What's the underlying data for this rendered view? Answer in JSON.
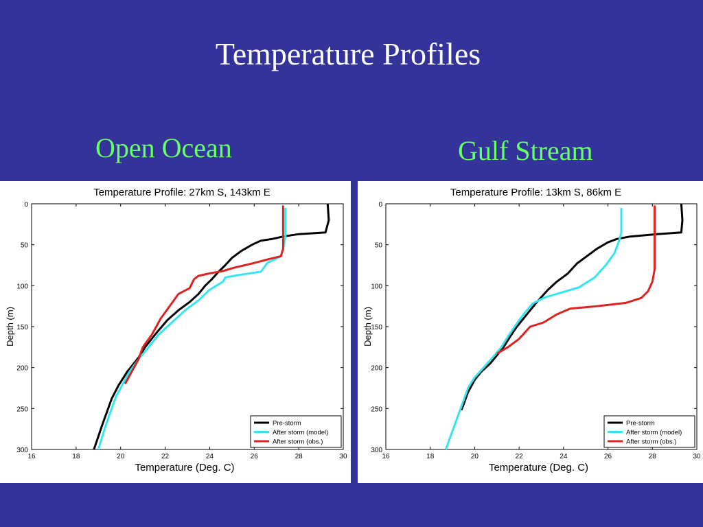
{
  "slide": {
    "title": "Temperature Profiles",
    "left_subtitle": "Open Ocean",
    "right_subtitle": "Gulf Stream",
    "subtitle_color": "#66ff66",
    "background_color": "#333399"
  },
  "chart_data": [
    {
      "type": "line",
      "title": "Temperature  Profile: 27km S, 143km E",
      "xlabel": "Temperature (Deg. C)",
      "ylabel": "Depth (m)",
      "xlim": [
        16,
        30
      ],
      "ylim": [
        0,
        300
      ],
      "y_inverted": true,
      "xticks": [
        16,
        18,
        20,
        22,
        24,
        26,
        28,
        30
      ],
      "yticks": [
        0,
        50,
        100,
        150,
        200,
        250,
        300
      ],
      "grid": false,
      "legend_position": "bottom-right",
      "series": [
        {
          "name": "Pre-storm",
          "color": "#000000",
          "points": [
            [
              29.3,
              0
            ],
            [
              29.35,
              20
            ],
            [
              29.2,
              35
            ],
            [
              28.0,
              37
            ],
            [
              27.3,
              40
            ],
            [
              26.8,
              43
            ],
            [
              26.3,
              45
            ],
            [
              25.9,
              50
            ],
            [
              25.4,
              58
            ],
            [
              25.0,
              66
            ],
            [
              24.7,
              75
            ],
            [
              24.4,
              83
            ],
            [
              24.1,
              92
            ],
            [
              23.8,
              100
            ],
            [
              23.5,
              110
            ],
            [
              23.1,
              120
            ],
            [
              22.6,
              130
            ],
            [
              22.1,
              142
            ],
            [
              21.6,
              158
            ],
            [
              21.1,
              175
            ],
            [
              20.8,
              188
            ],
            [
              20.3,
              205
            ],
            [
              19.9,
              222
            ],
            [
              19.6,
              238
            ],
            [
              19.4,
              253
            ],
            [
              19.2,
              268
            ],
            [
              19.0,
              284
            ],
            [
              18.8,
              300
            ]
          ]
        },
        {
          "name": "After storm (model)",
          "color": "#33e6f0",
          "points": [
            [
              27.4,
              5
            ],
            [
              27.4,
              20
            ],
            [
              27.4,
              40
            ],
            [
              27.3,
              55
            ],
            [
              27.2,
              64
            ],
            [
              26.6,
              72
            ],
            [
              26.3,
              83
            ],
            [
              25.3,
              87
            ],
            [
              24.7,
              90
            ],
            [
              24.6,
              95
            ],
            [
              24.0,
              105
            ],
            [
              23.5,
              118
            ],
            [
              22.9,
              130
            ],
            [
              22.3,
              145
            ],
            [
              21.7,
              160
            ],
            [
              21.2,
              177
            ],
            [
              20.8,
              190
            ],
            [
              20.4,
              205
            ],
            [
              20.1,
              220
            ],
            [
              19.8,
              235
            ],
            [
              19.6,
              250
            ],
            [
              19.4,
              265
            ],
            [
              19.2,
              282
            ],
            [
              19.0,
              300
            ]
          ]
        },
        {
          "name": "After storm (obs.)",
          "color": "#dd2222",
          "points": [
            [
              27.3,
              2
            ],
            [
              27.3,
              20
            ],
            [
              27.3,
              40
            ],
            [
              27.3,
              55
            ],
            [
              27.2,
              64
            ],
            [
              26.6,
              68
            ],
            [
              25.9,
              73
            ],
            [
              25.1,
              78
            ],
            [
              24.6,
              82
            ],
            [
              24.0,
              85
            ],
            [
              23.5,
              88
            ],
            [
              23.3,
              92
            ],
            [
              23.1,
              103
            ],
            [
              22.6,
              110
            ],
            [
              22.2,
              125
            ],
            [
              21.8,
              140
            ],
            [
              21.4,
              160
            ],
            [
              21.0,
              175
            ],
            [
              20.8,
              190
            ],
            [
              20.5,
              205
            ],
            [
              20.2,
              220
            ]
          ]
        }
      ]
    },
    {
      "type": "line",
      "title": "Temperature  Profile: 13km S, 86km E",
      "xlabel": "Temperature (Deg. C)",
      "ylabel": "Depth (m)",
      "xlim": [
        16,
        30
      ],
      "ylim": [
        0,
        300
      ],
      "y_inverted": true,
      "xticks": [
        16,
        18,
        20,
        22,
        24,
        26,
        28,
        30
      ],
      "yticks": [
        0,
        50,
        100,
        150,
        200,
        250,
        300
      ],
      "grid": false,
      "legend_position": "bottom-right",
      "series": [
        {
          "name": "Pre-storm",
          "color": "#000000",
          "points": [
            [
              29.3,
              0
            ],
            [
              29.35,
              20
            ],
            [
              29.3,
              35
            ],
            [
              28.2,
              37
            ],
            [
              27.0,
              40
            ],
            [
              26.4,
              43
            ],
            [
              26.0,
              47
            ],
            [
              25.5,
              55
            ],
            [
              25.0,
              65
            ],
            [
              24.6,
              73
            ],
            [
              24.2,
              85
            ],
            [
              23.7,
              95
            ],
            [
              23.3,
              105
            ],
            [
              22.8,
              120
            ],
            [
              22.5,
              130
            ],
            [
              22.2,
              140
            ],
            [
              21.9,
              150
            ],
            [
              21.6,
              162
            ],
            [
              21.3,
              175
            ],
            [
              21.0,
              185
            ],
            [
              20.7,
              195
            ],
            [
              20.3,
              205
            ],
            [
              20.0,
              215
            ],
            [
              19.7,
              230
            ],
            [
              19.5,
              245
            ],
            [
              19.4,
              252
            ]
          ]
        },
        {
          "name": "After storm (model)",
          "color": "#33e6f0",
          "points": [
            [
              26.6,
              5
            ],
            [
              26.6,
              20
            ],
            [
              26.6,
              35
            ],
            [
              26.5,
              45
            ],
            [
              26.3,
              60
            ],
            [
              25.9,
              75
            ],
            [
              25.4,
              90
            ],
            [
              24.7,
              102
            ],
            [
              23.7,
              110
            ],
            [
              23.1,
              115
            ],
            [
              22.6,
              122
            ],
            [
              22.2,
              135
            ],
            [
              21.8,
              150
            ],
            [
              21.5,
              162
            ],
            [
              21.2,
              175
            ],
            [
              20.8,
              188
            ],
            [
              20.4,
              200
            ],
            [
              20.0,
              212
            ],
            [
              19.7,
              225
            ],
            [
              19.5,
              240
            ],
            [
              19.3,
              255
            ],
            [
              19.1,
              270
            ],
            [
              18.9,
              285
            ],
            [
              18.7,
              300
            ]
          ]
        },
        {
          "name": "After storm (obs.)",
          "color": "#dd2222",
          "points": [
            [
              28.1,
              2
            ],
            [
              28.1,
              20
            ],
            [
              28.1,
              50
            ],
            [
              28.1,
              80
            ],
            [
              28.0,
              95
            ],
            [
              27.8,
              107
            ],
            [
              27.5,
              115
            ],
            [
              26.8,
              121
            ],
            [
              25.5,
              125
            ],
            [
              24.3,
              128
            ],
            [
              23.7,
              135
            ],
            [
              23.1,
              145
            ],
            [
              22.5,
              150
            ],
            [
              22.0,
              165
            ],
            [
              21.5,
              175
            ],
            [
              21.0,
              183
            ]
          ]
        }
      ]
    }
  ]
}
